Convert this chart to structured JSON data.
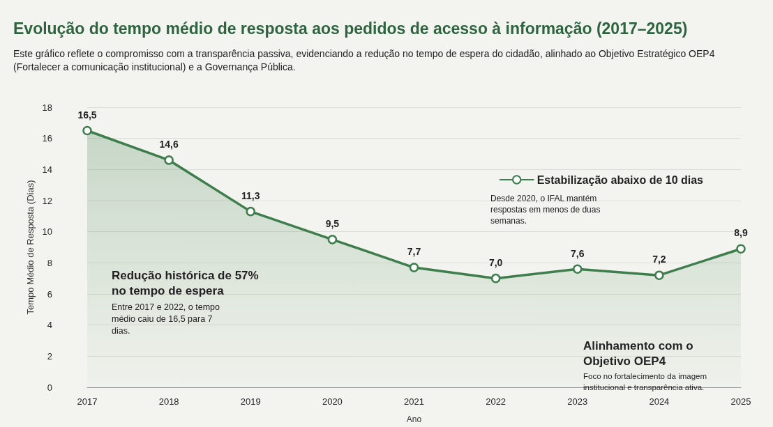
{
  "chart_data": {
    "type": "area",
    "title": "Evolução do tempo médio de resposta aos pedidos de acesso à informação (2017–2025)",
    "subtitle": "Este gráfico reflete o compromisso com a transparência passiva, evidenciando a redução no tempo de espera do cidadão, alinhado ao Objetivo Estratégico OEP4 (Fortalecer a comunicação institucional) e a Governança Pública.",
    "xlabel": "Ano",
    "ylabel": "Tempo Médio de Resposta (Dias)",
    "categories": [
      "2017",
      "2018",
      "2019",
      "2020",
      "2021",
      "2022",
      "2023",
      "2024",
      "2025"
    ],
    "series": [
      {
        "name": "Estabilização abaixo de 10 dias",
        "color": "#3e7d4c",
        "values": [
          16.5,
          14.6,
          11.3,
          9.5,
          7.7,
          7.0,
          7.6,
          7.2,
          8.9
        ],
        "value_labels": [
          "16,5",
          "14,6",
          "11,3",
          "9,5",
          "7,7",
          "7,0",
          "7,6",
          "7,2",
          "8,9"
        ]
      }
    ],
    "ylim": [
      0,
      18
    ],
    "yticks": [
      0,
      2,
      4,
      6,
      8,
      10,
      12,
      14,
      16,
      18
    ],
    "grid": "y",
    "legend": "right",
    "marker": "circle",
    "line_style": "solid",
    "annotations": [
      "Desde 2020, o IFAL mantém respostas em menos de duas semanas.",
      "Redução histórica de 57% no tempo de espera",
      "Entre 2017 e 2022, o tempo médio caiu de 16,5 para 7 dias.",
      "Alinhamento com o Objetivo OEP4",
      "Foco no fortalecimento da imagem institucional e transparência ativa."
    ]
  }
}
